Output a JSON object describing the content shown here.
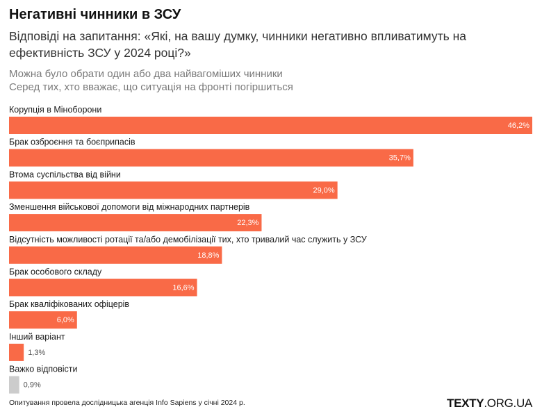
{
  "header": {
    "title": "Негативні чинники в ЗСУ",
    "subtitle": "Відповіді на запитання: «Які, на вашу думку, чинники негативно впливатимуть на ефективність ЗСУ у 2024 році?»",
    "note_1": "Можна було обрати один або два найвагоміших чинники",
    "note_2": "Серед тих, хто вважає, що ситуація на фронті погіршиться"
  },
  "footer": {
    "source": "Опитування провела дослідницька агенція Info Sapiens у січні 2024 р.",
    "brand_bold": "TEXTY",
    "brand_rest": ".ORG.UA"
  },
  "colors": {
    "bar": "#f96a47",
    "bar_muted": "#cccccc",
    "label_inside": "#ffffff",
    "label_outside": "#555555"
  },
  "chart_data": {
    "type": "bar",
    "orientation": "horizontal",
    "value_suffix": "%",
    "xlim": [
      0,
      46.2
    ],
    "grid": false,
    "categories": [
      "Корупція в Міноборони",
      "Брак озброєння та боєприпасів",
      "Втома суспільства від війни",
      "Зменшення військової допомоги від міжнародних партнерів",
      "Відсутність можливості ротації та/або демобілізації тих, хто тривалий час служить у ЗСУ",
      "Брак особового складу",
      "Брак кваліфікованих офіцерів",
      "Інший варіант",
      "Важко відповісти"
    ],
    "values": [
      46.2,
      35.7,
      29.0,
      22.3,
      18.8,
      16.6,
      6.0,
      1.3,
      0.9
    ],
    "value_labels": [
      "46,2%",
      "35,7%",
      "29,0%",
      "22,3%",
      "18,8%",
      "16,6%",
      "6,0%",
      "1,3%",
      "0,9%"
    ],
    "muted_categories": [
      "Важко відповісти"
    ]
  }
}
